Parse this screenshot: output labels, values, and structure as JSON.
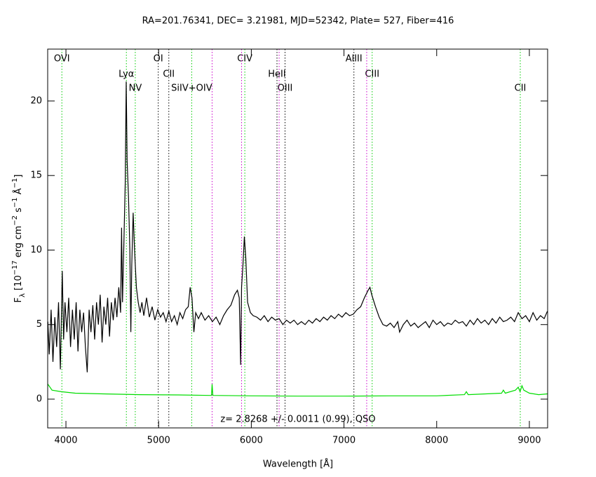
{
  "chart_data": {
    "type": "line",
    "title": "RA=201.76341, DEC= 3.21981, MJD=52342, Plate= 527, Fiber=416",
    "xlabel": "Wavelength [Å]",
    "ylabel": [
      "F",
      "λ",
      " [10",
      "−17",
      " erg cm",
      "−2",
      " s",
      "−1",
      " Å",
      "−1",
      "]"
    ],
    "annotation": "z= 2.8268 +/- 0.0011 (0.99), QSO",
    "xlim": [
      3803,
      9197
    ],
    "ylim": [
      -1.93,
      23.48
    ],
    "xticks": [
      4000,
      5000,
      6000,
      7000,
      8000,
      9000
    ],
    "yticks": [
      0,
      5,
      10,
      15,
      20
    ],
    "lines": [
      {
        "label": "OVI",
        "x": 3956,
        "color": "#00cc00"
      },
      {
        "label": "Lyα",
        "x": 4652,
        "color": "#00cc00"
      },
      {
        "label": "NV",
        "x": 4748,
        "color": "#00cc00"
      },
      {
        "label": "OI",
        "x": 4996,
        "color": "#000000"
      },
      {
        "label": "CII",
        "x": 5110,
        "color": "#000000"
      },
      {
        "label": "SiIV+OIV",
        "x": 5357,
        "color": "#00cc00"
      },
      {
        "label": "CIV",
        "x": 5930,
        "color": "#00cc00"
      },
      {
        "label": "HeII",
        "x": 6277,
        "color": "#000000"
      },
      {
        "label": "OIII",
        "x": 6364,
        "color": "#000000"
      },
      {
        "label": "AlIII",
        "x": 7107,
        "color": "#000000"
      },
      {
        "label": "CIII",
        "x": 7304,
        "color": "#00cc00"
      },
      {
        "label": "CII",
        "x": 8902,
        "color": "#00cc00"
      }
    ],
    "extra_lines": {
      "color": "#cc00cc",
      "x": [
        5577,
        5895,
        6300,
        7245
      ]
    },
    "series": [
      {
        "color": "#000000",
        "x": [
          3805,
          3820,
          3840,
          3860,
          3880,
          3900,
          3920,
          3940,
          3960,
          3975,
          3990,
          4010,
          4030,
          4050,
          4070,
          4090,
          4110,
          4130,
          4150,
          4170,
          4190,
          4210,
          4230,
          4250,
          4270,
          4290,
          4310,
          4330,
          4350,
          4370,
          4390,
          4410,
          4430,
          4450,
          4470,
          4490,
          4510,
          4530,
          4550,
          4570,
          4590,
          4600,
          4610,
          4625,
          4640,
          4650,
          4660,
          4675,
          4690,
          4700,
          4710,
          4725,
          4740,
          4760,
          4780,
          4800,
          4820,
          4840,
          4870,
          4900,
          4930,
          4960,
          4990,
          5020,
          5050,
          5080,
          5110,
          5140,
          5170,
          5200,
          5230,
          5260,
          5290,
          5320,
          5340,
          5360,
          5380,
          5400,
          5430,
          5460,
          5500,
          5540,
          5580,
          5620,
          5660,
          5700,
          5740,
          5780,
          5820,
          5850,
          5870,
          5885,
          5895,
          5910,
          5925,
          5940,
          5960,
          5990,
          6020,
          6060,
          6100,
          6140,
          6180,
          6220,
          6260,
          6300,
          6340,
          6380,
          6420,
          6460,
          6500,
          6540,
          6580,
          6620,
          6660,
          6700,
          6740,
          6780,
          6820,
          6860,
          6900,
          6940,
          6980,
          7020,
          7060,
          7100,
          7140,
          7180,
          7220,
          7260,
          7280,
          7300,
          7340,
          7380,
          7420,
          7460,
          7500,
          7540,
          7580,
          7600,
          7640,
          7680,
          7720,
          7760,
          7800,
          7840,
          7880,
          7920,
          7960,
          8000,
          8040,
          8080,
          8120,
          8160,
          8200,
          8240,
          8280,
          8320,
          8360,
          8400,
          8440,
          8480,
          8520,
          8560,
          8600,
          8640,
          8680,
          8720,
          8760,
          8800,
          8840,
          8880,
          8920,
          8960,
          9000,
          9040,
          9080,
          9120,
          9160,
          9195
        ],
        "values": [
          5.2,
          3.0,
          6.0,
          2.5,
          5.5,
          3.5,
          6.5,
          2.0,
          8.6,
          4.0,
          6.5,
          4.5,
          6.8,
          3.5,
          6.0,
          4.0,
          6.5,
          3.2,
          6.0,
          4.5,
          5.8,
          3.5,
          1.8,
          6.0,
          4.5,
          6.3,
          4.0,
          6.5,
          5.0,
          7.0,
          3.8,
          6.2,
          5.0,
          6.8,
          4.2,
          6.5,
          5.3,
          6.8,
          5.5,
          7.5,
          5.8,
          11.5,
          6.5,
          10.5,
          14.5,
          21.3,
          16.0,
          13.5,
          10.0,
          4.5,
          9.0,
          12.5,
          10.0,
          7.5,
          6.5,
          5.8,
          6.5,
          5.6,
          6.8,
          5.5,
          6.2,
          5.3,
          6.0,
          5.5,
          5.8,
          5.2,
          5.9,
          5.2,
          5.6,
          5.0,
          5.8,
          5.4,
          6.0,
          6.2,
          7.5,
          6.8,
          4.5,
          5.8,
          5.4,
          5.8,
          5.3,
          5.6,
          5.2,
          5.5,
          5.0,
          5.6,
          6.0,
          6.3,
          7.0,
          7.3,
          6.8,
          2.3,
          7.5,
          9.0,
          10.9,
          9.5,
          6.5,
          5.8,
          5.6,
          5.5,
          5.3,
          5.6,
          5.2,
          5.5,
          5.3,
          5.4,
          5.0,
          5.3,
          5.1,
          5.3,
          5.0,
          5.2,
          5.0,
          5.3,
          5.1,
          5.4,
          5.2,
          5.5,
          5.3,
          5.6,
          5.4,
          5.7,
          5.5,
          5.8,
          5.6,
          5.7,
          6.0,
          6.2,
          6.8,
          7.3,
          7.5,
          7.0,
          6.2,
          5.5,
          5.0,
          4.9,
          5.1,
          4.8,
          5.2,
          4.5,
          5.0,
          5.3,
          4.9,
          5.1,
          4.8,
          5.0,
          5.2,
          4.8,
          5.3,
          5.0,
          5.2,
          4.9,
          5.1,
          5.0,
          5.3,
          5.1,
          5.2,
          4.9,
          5.3,
          5.0,
          5.4,
          5.1,
          5.3,
          5.0,
          5.4,
          5.1,
          5.5,
          5.2,
          5.3,
          5.5,
          5.2,
          5.8,
          5.4,
          5.6,
          5.2,
          5.8,
          5.3,
          5.6,
          5.4,
          5.9
        ]
      },
      {
        "color": "#00dd00",
        "x": [
          3805,
          3850,
          3950,
          4100,
          4400,
          4800,
          5200,
          5550,
          5570,
          5577,
          5585,
          6000,
          6500,
          7000,
          7500,
          8000,
          8300,
          8320,
          8340,
          8700,
          8720,
          8740,
          8850,
          8880,
          8900,
          8920,
          8940,
          9000,
          9100,
          9195
        ],
        "values": [
          1.0,
          0.6,
          0.5,
          0.4,
          0.35,
          0.3,
          0.28,
          0.25,
          0.25,
          1.0,
          0.25,
          0.22,
          0.2,
          0.2,
          0.22,
          0.22,
          0.3,
          0.5,
          0.3,
          0.4,
          0.6,
          0.4,
          0.6,
          0.8,
          0.5,
          0.9,
          0.6,
          0.4,
          0.3,
          0.35
        ]
      }
    ]
  }
}
